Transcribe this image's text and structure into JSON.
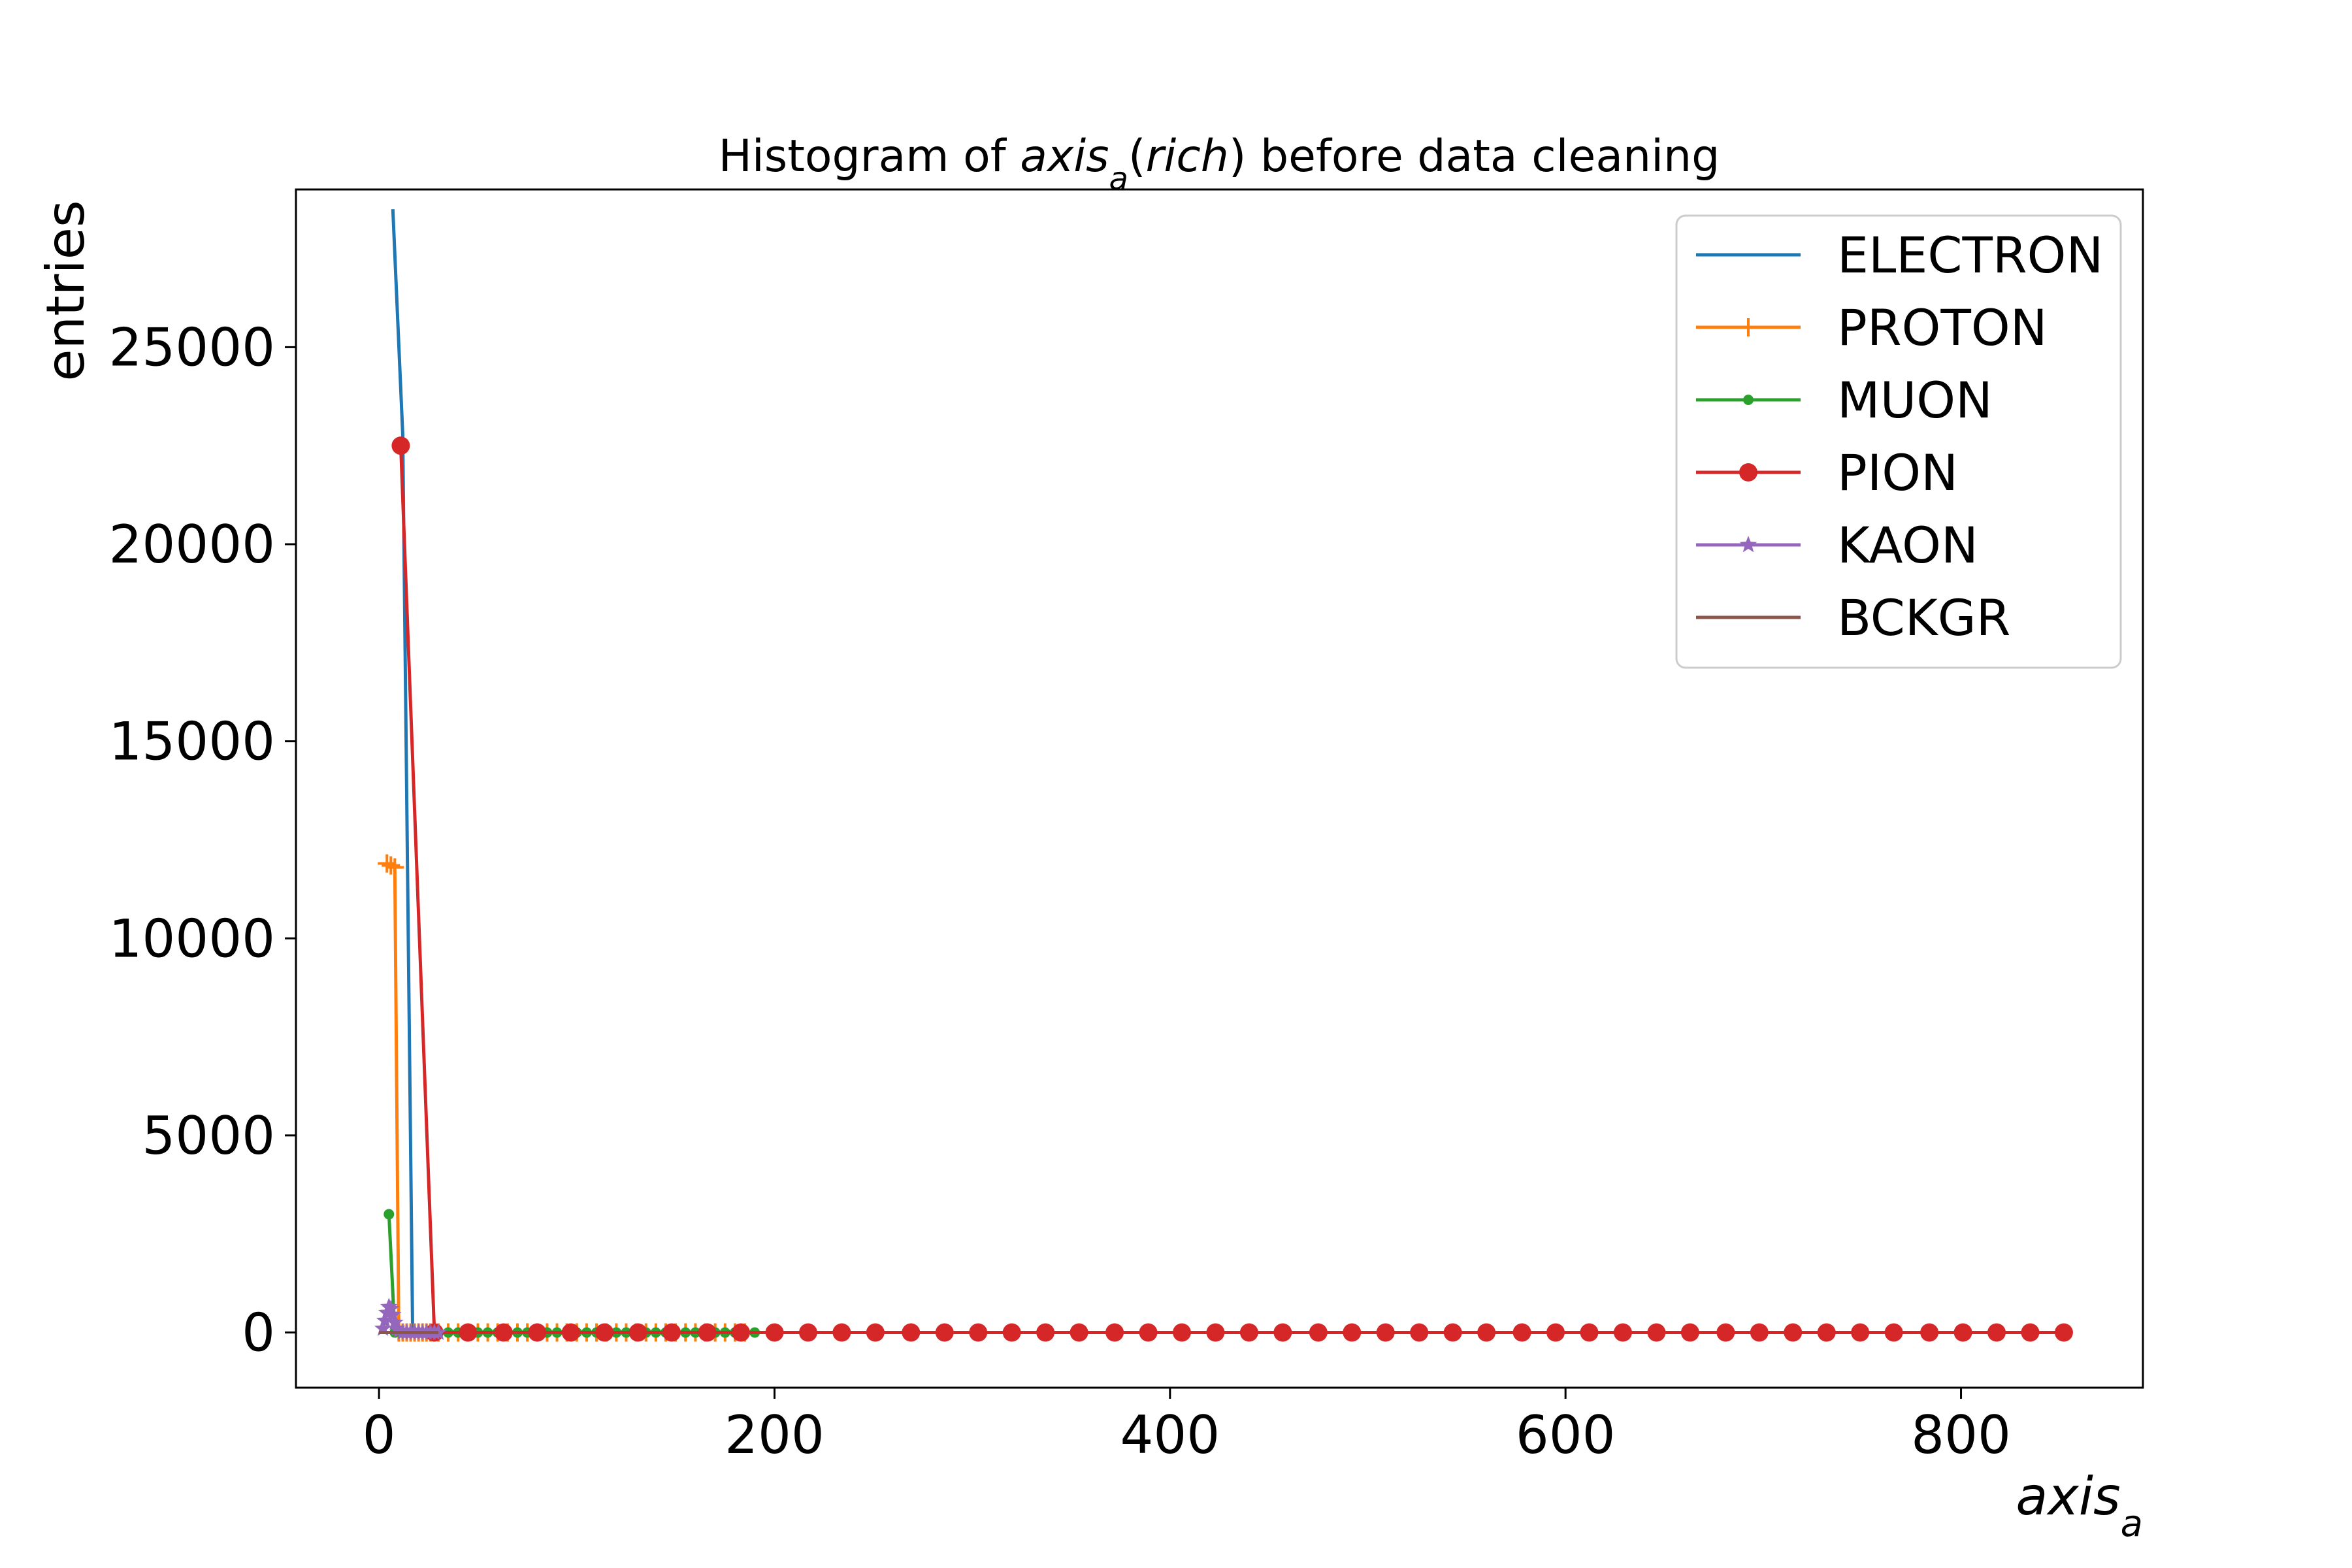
{
  "chart_data": {
    "type": "line",
    "title": {
      "prefix": "Histogram of ",
      "var_main": "axis",
      "var_sub": "a",
      "var_arg_open": "(",
      "var_arg": "rich",
      "var_arg_close": ")",
      "suffix": " before data cleaning"
    },
    "xlabel": {
      "main": "axis",
      "sub": "a"
    },
    "ylabel": "entries",
    "xlim": [
      -42,
      892
    ],
    "ylim": [
      -1400,
      29000
    ],
    "xticks": [
      0,
      200,
      400,
      600,
      800
    ],
    "yticks": [
      0,
      5000,
      10000,
      15000,
      20000,
      25000
    ],
    "legend_position": "top-right",
    "grid": false,
    "series": [
      {
        "name": "ELECTRON",
        "color": "#1f77b4",
        "marker": "none",
        "x": [
          7,
          12,
          17,
          22,
          27,
          32
        ],
        "y": [
          28500,
          22800,
          0,
          0,
          0,
          0
        ]
      },
      {
        "name": "PROTON",
        "color": "#ff7f0e",
        "marker": "plus",
        "x": [
          4,
          6,
          8,
          10,
          12,
          14,
          16,
          18,
          20,
          22,
          24,
          26,
          28,
          30,
          35,
          40,
          45,
          50,
          55,
          60,
          65,
          70,
          75,
          80,
          85,
          90,
          95,
          100,
          105,
          110,
          115,
          120,
          125,
          130,
          135,
          140,
          145,
          150,
          155,
          160,
          165,
          170,
          175,
          180,
          185
        ],
        "y": [
          11900,
          11850,
          11800,
          0,
          0,
          0,
          0,
          0,
          0,
          0,
          0,
          0,
          0,
          0,
          0,
          0,
          0,
          0,
          0,
          0,
          0,
          0,
          0,
          0,
          0,
          0,
          0,
          0,
          0,
          0,
          0,
          0,
          0,
          0,
          0,
          0,
          0,
          0,
          0,
          0,
          0,
          0,
          0,
          0,
          0
        ]
      },
      {
        "name": "MUON",
        "color": "#2ca02c",
        "marker": "point",
        "x": [
          5,
          8,
          11,
          14,
          17,
          20,
          25,
          30,
          35,
          40,
          45,
          50,
          55,
          60,
          65,
          70,
          75,
          80,
          85,
          90,
          95,
          100,
          105,
          110,
          115,
          120,
          125,
          130,
          135,
          140,
          145,
          150,
          155,
          160,
          165,
          170,
          175,
          180,
          185,
          190
        ],
        "y": [
          3000,
          0,
          0,
          0,
          0,
          0,
          0,
          0,
          0,
          0,
          0,
          0,
          0,
          0,
          0,
          0,
          0,
          0,
          0,
          0,
          0,
          0,
          0,
          0,
          0,
          0,
          0,
          0,
          0,
          0,
          0,
          0,
          0,
          0,
          0,
          0,
          0,
          0,
          0,
          0
        ]
      },
      {
        "name": "PION",
        "color": "#d62728",
        "marker": "circle",
        "x": [
          11,
          28,
          45,
          63,
          80,
          97,
          114,
          131,
          148,
          166,
          183,
          200,
          217,
          234,
          251,
          269,
          286,
          303,
          320,
          337,
          354,
          372,
          389,
          406,
          423,
          440,
          457,
          475,
          492,
          509,
          526,
          543,
          560,
          578,
          595,
          612,
          629,
          646,
          663,
          681,
          698,
          715,
          732,
          749,
          766,
          784,
          801,
          818,
          835,
          852
        ],
        "y": [
          22500,
          0,
          0,
          0,
          0,
          0,
          0,
          0,
          0,
          0,
          0,
          0,
          0,
          0,
          0,
          0,
          0,
          0,
          0,
          0,
          0,
          0,
          0,
          0,
          0,
          0,
          0,
          0,
          0,
          0,
          0,
          0,
          0,
          0,
          0,
          0,
          0,
          0,
          0,
          0,
          0,
          0,
          0,
          0,
          0,
          0,
          0,
          0,
          0,
          0
        ]
      },
      {
        "name": "KAON",
        "color": "#9467bd",
        "marker": "star",
        "x": [
          2,
          3,
          4,
          5,
          6,
          7,
          8,
          9,
          10,
          12,
          14,
          16,
          18,
          20,
          22,
          24,
          26,
          28,
          30
        ],
        "y": [
          100,
          300,
          500,
          650,
          600,
          450,
          250,
          100,
          50,
          0,
          0,
          0,
          0,
          0,
          0,
          0,
          0,
          0,
          0
        ]
      },
      {
        "name": "BCKGR",
        "color": "#8c564b",
        "marker": "none",
        "x": [
          0,
          10,
          20,
          30
        ],
        "y": [
          0,
          0,
          0,
          0
        ]
      }
    ]
  }
}
